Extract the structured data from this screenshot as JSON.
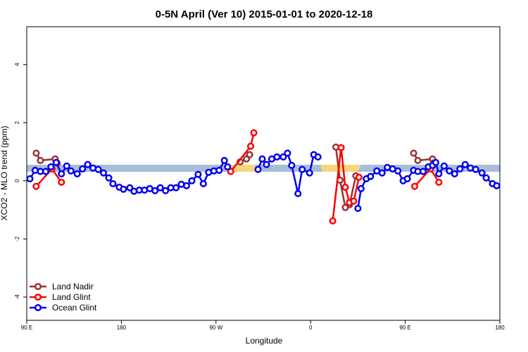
{
  "chart_data": {
    "type": "line",
    "title": "0-5N April (Ver 10)   2015-01-01 to 2020-12-18",
    "x_label": "Longitude",
    "y_label": "XCO2 - MLO trend (ppm)",
    "xlim": [
      90,
      540
    ],
    "xticks": [
      {
        "value": 90,
        "label": "90 E"
      },
      180,
      {
        "value": 270,
        "label": "90 W"
      },
      {
        "value": 360,
        "label": "0"
      },
      {
        "value": 450,
        "label": "90 E"
      },
      180
    ],
    "ylim": [
      -4.8,
      5.3
    ],
    "yticks": [
      -4,
      -2,
      0,
      2,
      4
    ],
    "legend": "bottom-left",
    "series": [
      {
        "name": "Land Nadir",
        "color": "#993333",
        "x": [
          99,
          103,
          117,
          119,
          null,
          293,
          299,
          302,
          null,
          384,
          388,
          393,
          397,
          403,
          null,
          458,
          462,
          476,
          477
        ],
        "values": [
          0.95,
          0.7,
          0.75,
          0.61,
          null,
          0.65,
          0.75,
          0.9,
          null,
          1.16,
          0.02,
          -0.92,
          -0.82,
          0.17,
          null,
          0.95,
          0.7,
          0.75,
          0.61
        ]
      },
      {
        "name": "Land Glint",
        "color": "#ff0000",
        "x": [
          99,
          114,
          123,
          null,
          284,
          303,
          306,
          null,
          381,
          389,
          393,
          397,
          401,
          406,
          null,
          459,
          474,
          482
        ],
        "values": [
          -0.19,
          0.41,
          -0.05,
          null,
          0.32,
          1.19,
          1.65,
          null,
          -1.38,
          1.14,
          -0.22,
          -0.75,
          -0.7,
          0.12,
          null,
          -0.19,
          0.41,
          -0.05
        ]
      },
      {
        "name": "Ocean Glint",
        "color": "#0000ee",
        "x": [
          93,
          98,
          103,
          108,
          113,
          118,
          123,
          128,
          132,
          138,
          143,
          148,
          153,
          158,
          163,
          168,
          172,
          178,
          182,
          188,
          192,
          197,
          202,
          207,
          212,
          217,
          222,
          227,
          232,
          237,
          242,
          247,
          253,
          258,
          263,
          268,
          273,
          278,
          281,
          null,
          310,
          314,
          318,
          323,
          328,
          334,
          338,
          342,
          348,
          352,
          359,
          363,
          367,
          null,
          405,
          408,
          413,
          417,
          423,
          428,
          433,
          438,
          443,
          448,
          452,
          458,
          462,
          467,
          472,
          476,
          479,
          482,
          487,
          492,
          497,
          502,
          507,
          512,
          517,
          523,
          527,
          533,
          537
        ],
        "values": [
          0.07,
          0.36,
          0.32,
          0.32,
          0.48,
          0.63,
          0.24,
          0.51,
          0.34,
          0.24,
          0.41,
          0.56,
          0.44,
          0.39,
          0.27,
          0.1,
          -0.1,
          -0.22,
          -0.29,
          -0.24,
          -0.36,
          -0.32,
          -0.32,
          -0.27,
          -0.34,
          -0.24,
          -0.34,
          -0.24,
          -0.24,
          -0.12,
          -0.17,
          0,
          0.22,
          -0.1,
          0.29,
          0.34,
          0.36,
          0.7,
          0.48,
          null,
          0.39,
          0.75,
          0.56,
          0.75,
          0.82,
          0.82,
          0.95,
          0.53,
          -0.44,
          0.39,
          0.27,
          0.9,
          0.82,
          null,
          -0.95,
          -0.27,
          0.07,
          0.15,
          0.34,
          0.27,
          0.46,
          0.41,
          0.34,
          0,
          0.07,
          0.36,
          0.32,
          0.32,
          0.48,
          0.53,
          0.63,
          0.24,
          0.51,
          0.34,
          0.24,
          0.41,
          0.56,
          0.44,
          0.39,
          0.27,
          0.1,
          -0.1,
          -0.17
        ]
      }
    ]
  }
}
